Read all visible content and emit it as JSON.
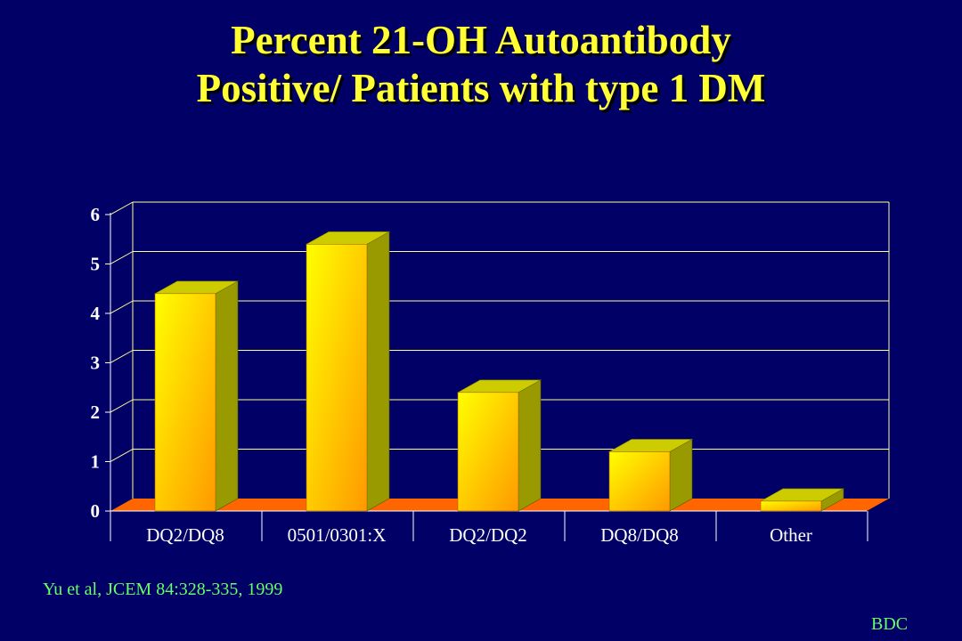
{
  "slide": {
    "title_line1": "Percent 21-OH Autoantibody",
    "title_line2": "Positive/ Patients with type 1 DM",
    "citation": "Yu et al, JCEM 84:328-335, 1999",
    "brand": "BDC"
  },
  "colors": {
    "background": "#000066",
    "title": "#ffff33",
    "footer_text": "#66ff66",
    "gridline": "#ffff99",
    "floor": "#ff6600",
    "bar_front_light": "#ffff00",
    "bar_front_dark": "#ff9900",
    "bar_side": "#999900",
    "axis_text": "#ffffff"
  },
  "chart_data": {
    "type": "bar",
    "style": "3d-column",
    "categories": [
      "DQ2/DQ8",
      "0501/0301:X",
      "DQ2/DQ2",
      "DQ8/DQ8",
      "Other"
    ],
    "values": [
      4.4,
      5.4,
      2.4,
      1.2,
      0.2
    ],
    "ylim": [
      0,
      6
    ],
    "yticks": [
      0,
      1,
      2,
      3,
      4,
      5,
      6
    ],
    "grid": true,
    "legend": "none"
  }
}
